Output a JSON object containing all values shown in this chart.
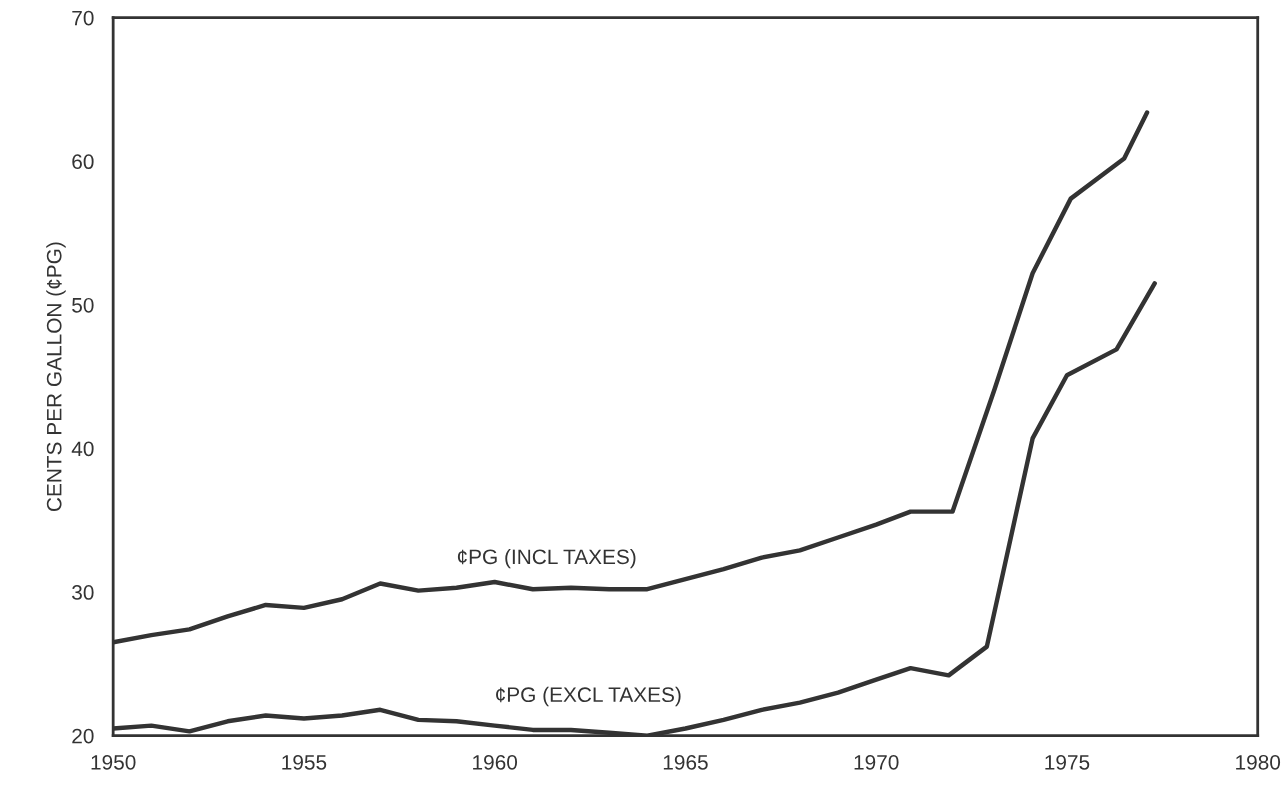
{
  "chart_data": {
    "type": "line",
    "ylabel": "CENTS PER GALLON (¢PG)",
    "xlim": [
      1950,
      1980
    ],
    "xticks": [
      1950,
      1955,
      1960,
      1965,
      1970,
      1975,
      1980
    ],
    "ylim": [
      20,
      70
    ],
    "yticks": [
      20,
      30,
      40,
      50,
      60,
      70
    ],
    "grid": false,
    "legend": false,
    "series": [
      {
        "color": "#333333",
        "x": [
          1950,
          1951,
          1952,
          1953,
          1954,
          1955,
          1956,
          1957,
          1958,
          1959,
          1960,
          1961,
          1962,
          1963,
          1964,
          1965,
          1966,
          1967,
          1968,
          1969,
          1970,
          1970.9,
          1972.0,
          1973.1,
          1974.1,
          1975.1,
          1976.5,
          1977.1
        ],
        "values": [
          26.5,
          27.0,
          27.4,
          28.3,
          29.1,
          28.9,
          29.5,
          30.6,
          30.1,
          30.3,
          30.7,
          30.2,
          30.3,
          30.2,
          30.2,
          30.9,
          31.6,
          32.4,
          32.9,
          33.8,
          34.7,
          35.6,
          35.6,
          44.1,
          52.2,
          57.4,
          60.2,
          63.4
        ]
      },
      {
        "color": "#333333",
        "x": [
          1950,
          1951,
          1952,
          1953,
          1954,
          1955,
          1956,
          1957,
          1958,
          1959,
          1960,
          1961,
          1962,
          1963,
          1964,
          1965,
          1966,
          1967,
          1968,
          1969,
          1970,
          1970.9,
          1971.9,
          1972.9,
          1974.1,
          1975.0,
          1976.3,
          1977.3
        ],
        "values": [
          20.5,
          20.7,
          20.3,
          21.0,
          21.4,
          21.2,
          21.4,
          21.8,
          21.1,
          21.0,
          20.7,
          20.4,
          20.4,
          20.2,
          20.0,
          20.5,
          21.1,
          21.8,
          22.3,
          23.0,
          23.9,
          24.7,
          24.2,
          26.2,
          40.7,
          45.1,
          46.9,
          51.5
        ]
      }
    ],
    "annotations": [
      {
        "text": "¢PG (INCL TAXES)",
        "x": 1959,
        "y": 30.3
      },
      {
        "text": "¢PG (EXCL TAXES)",
        "x": 1960,
        "y": 20.7
      }
    ]
  }
}
